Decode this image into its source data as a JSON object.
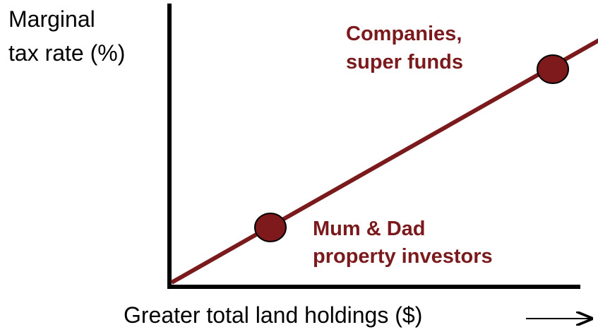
{
  "y_axis_label": [
    "Marginal",
    "tax rate (%)"
  ],
  "x_axis_label": "Greater total land holdings ($)",
  "points": [
    {
      "label": [
        "Mum & Dad",
        "property investors"
      ]
    },
    {
      "label": [
        "Companies,",
        "super funds"
      ]
    }
  ]
}
